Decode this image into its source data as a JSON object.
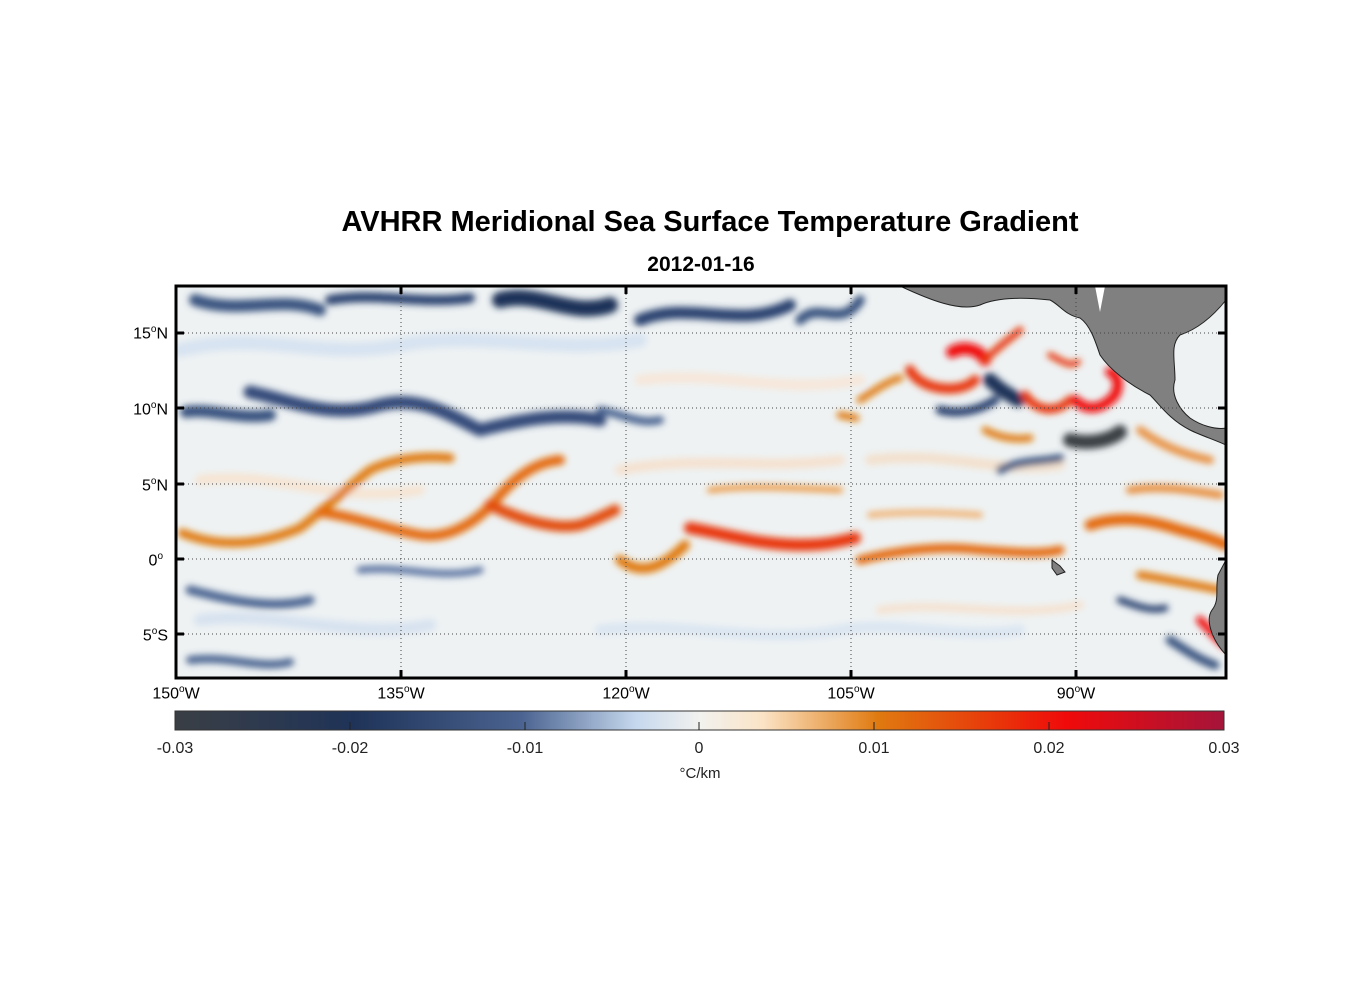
{
  "map": {
    "title": "AVHRR Meridional Sea Surface Temperature Gradient",
    "date": "2012-01-16",
    "lat_ticks": [
      {
        "deg": "15",
        "hemi": "N",
        "lat": 15
      },
      {
        "deg": "10",
        "hemi": "N",
        "lat": 10
      },
      {
        "deg": "5",
        "hemi": "N",
        "lat": 5
      },
      {
        "deg": "0",
        "hemi": "",
        "lat": 0
      },
      {
        "deg": "5",
        "hemi": "S",
        "lat": -5
      }
    ],
    "lon_ticks": [
      {
        "deg": "150",
        "hemi": "W",
        "lon": -150
      },
      {
        "deg": "135",
        "hemi": "W",
        "lon": -135
      },
      {
        "deg": "120",
        "hemi": "W",
        "lon": -120
      },
      {
        "deg": "105",
        "hemi": "W",
        "lon": -105
      },
      {
        "deg": "90",
        "hemi": "W",
        "lon": -90
      }
    ],
    "extent": {
      "lon_min": -150,
      "lon_max": -80,
      "lat_min": -8,
      "lat_max": 18
    },
    "land_color": "#808080",
    "grid": "dotted"
  },
  "colorbar": {
    "ticks": [
      "-0.03",
      "-0.02",
      "-0.01",
      "0",
      "0.01",
      "0.02",
      "0.03"
    ],
    "range": [
      -0.03,
      0.03
    ],
    "unit": "°C/km",
    "colors": [
      "#3a3f45",
      "#1f3358",
      "#4a6390",
      "#c6d8ee",
      "#f2f2ef",
      "#fbe4c6",
      "#e07a10",
      "#e8380a",
      "#f00a0a",
      "#a5143a"
    ]
  }
}
